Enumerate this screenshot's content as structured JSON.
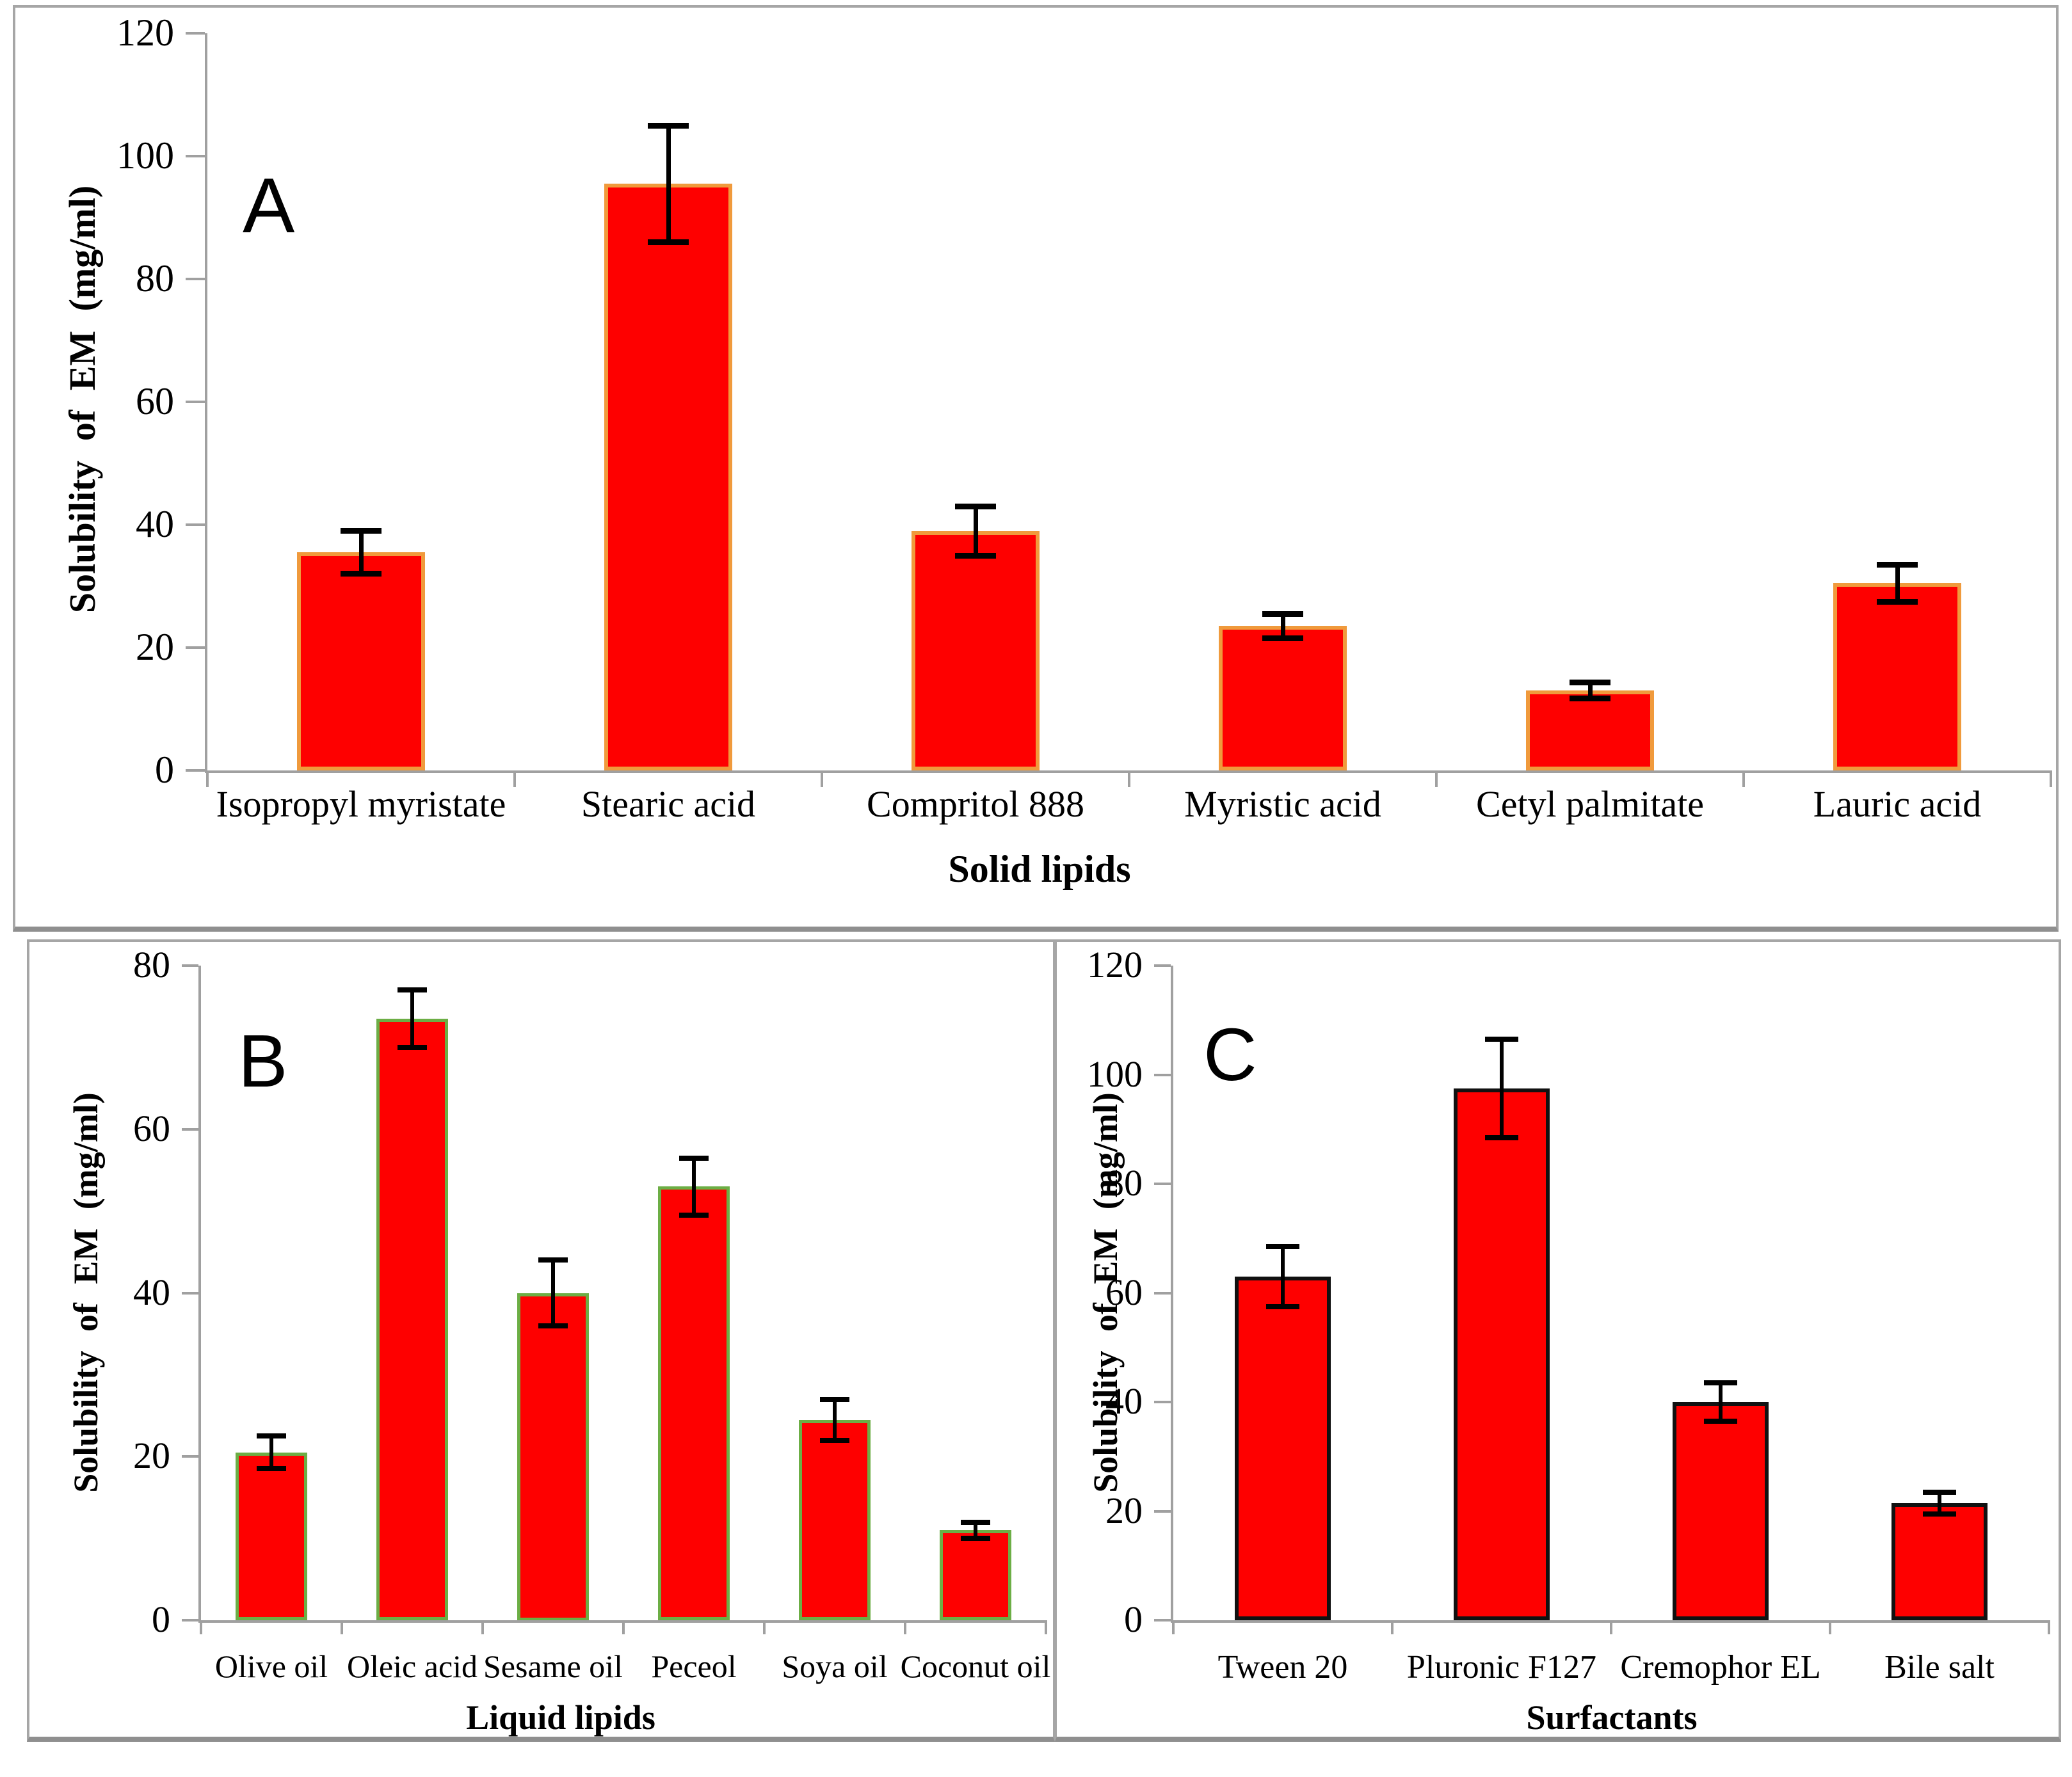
{
  "figure": {
    "background": "#ffffff",
    "panel_border_color": "#a6a6a6",
    "panels": [
      "A",
      "B",
      "C"
    ]
  },
  "chart_data": [
    {
      "type": "bar",
      "panel": "A",
      "title": "",
      "xlabel": "Solid lipids",
      "ylabel": "Solubility of EM (mg/ml)",
      "ylim": [
        0,
        120
      ],
      "yticks": [
        0,
        20,
        40,
        60,
        80,
        100,
        120
      ],
      "grid": false,
      "legend": null,
      "categories": [
        "Isopropyl myristate",
        "Stearic acid",
        "Compritol 888",
        "Myristic acid",
        "Cetyl palmitate",
        "Lauric acid"
      ],
      "values": [
        35.5,
        95.5,
        39,
        23.5,
        13,
        30.5
      ],
      "errors": [
        3.5,
        9.5,
        4,
        2,
        1.3,
        3
      ],
      "bar_fill": "#fe0000",
      "bar_border": "#f09a3c",
      "error_color": "#000000",
      "axis_color": "#a0a0a0"
    },
    {
      "type": "bar",
      "panel": "B",
      "title": "",
      "xlabel": "Liquid lipids",
      "ylabel": "Solubility of EM (mg/ml)",
      "ylim": [
        0,
        80
      ],
      "yticks": [
        0,
        20,
        40,
        60,
        80
      ],
      "grid": false,
      "legend": null,
      "categories": [
        "Olive oil",
        "Oleic acid",
        "Sesame oil",
        "Peceol",
        "Soya oil",
        "Coconut oil"
      ],
      "values": [
        20.5,
        73.5,
        40,
        53,
        24.5,
        11
      ],
      "errors": [
        2,
        3.5,
        4,
        3.5,
        2.5,
        1
      ],
      "bar_fill": "#fe0000",
      "bar_border": "#6cae45",
      "error_color": "#000000",
      "axis_color": "#a0a0a0"
    },
    {
      "type": "bar",
      "panel": "C",
      "title": "",
      "xlabel": "Surfactants",
      "ylabel": "Solubility of EM (mg/ml)",
      "ylim": [
        0,
        120
      ],
      "yticks": [
        0,
        20,
        40,
        60,
        80,
        100,
        120
      ],
      "grid": false,
      "legend": null,
      "categories": [
        "Tween 20",
        "Pluronic F127",
        "Cremophor EL",
        "Bile salt"
      ],
      "values": [
        63,
        97.5,
        40,
        21.5
      ],
      "errors": [
        5.5,
        9,
        3.5,
        2
      ],
      "bar_fill": "#fe0000",
      "bar_border": "#111111",
      "error_color": "#000000",
      "axis_color": "#a0a0a0"
    }
  ]
}
